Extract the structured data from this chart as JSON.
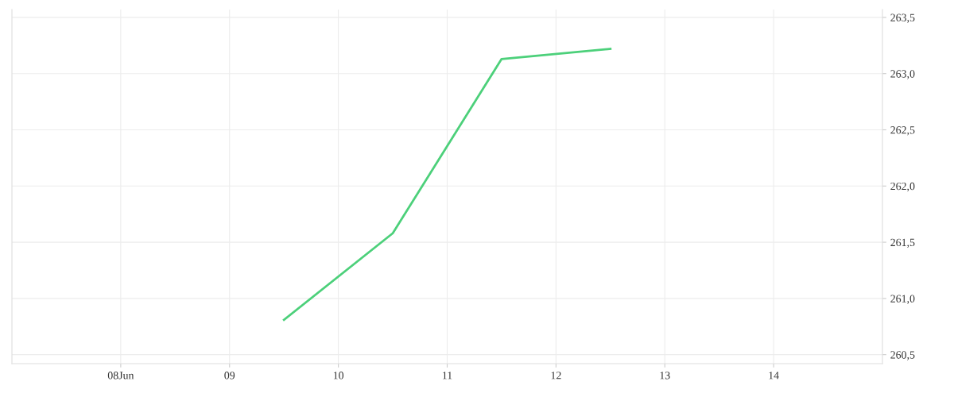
{
  "chart_data": {
    "type": "line",
    "x": [
      9.5,
      10.5,
      11.5,
      12.5
    ],
    "series": [
      {
        "color": "#4cd07a",
        "values": [
          260.81,
          261.58,
          263.13,
          263.22
        ]
      }
    ],
    "xlim": [
      7.0,
      15.0
    ],
    "xticks": [
      {
        "value": 8,
        "label": "08Jun"
      },
      {
        "value": 9,
        "label": "09"
      },
      {
        "value": 10,
        "label": "10"
      },
      {
        "value": 11,
        "label": "11"
      },
      {
        "value": 12,
        "label": "12"
      },
      {
        "value": 13,
        "label": "13"
      },
      {
        "value": 14,
        "label": "14"
      }
    ],
    "ylim": [
      260.42,
      263.57
    ],
    "yticks": [
      {
        "value": 260.5,
        "label": "260,5"
      },
      {
        "value": 261.0,
        "label": "261,0"
      },
      {
        "value": 261.5,
        "label": "261,5"
      },
      {
        "value": 262.0,
        "label": "262,0"
      },
      {
        "value": 262.5,
        "label": "262,5"
      },
      {
        "value": 263.0,
        "label": "263,0"
      },
      {
        "value": 263.5,
        "label": "263,5"
      }
    ],
    "grid": true,
    "marker": "none",
    "line_style": "solid",
    "legend": false
  }
}
